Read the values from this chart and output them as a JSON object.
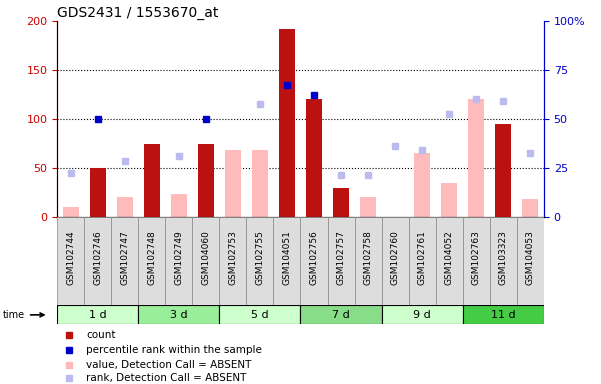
{
  "title": "GDS2431 / 1553670_at",
  "samples": [
    "GSM102744",
    "GSM102746",
    "GSM102747",
    "GSM102748",
    "GSM102749",
    "GSM104060",
    "GSM102753",
    "GSM102755",
    "GSM104051",
    "GSM102756",
    "GSM102757",
    "GSM102758",
    "GSM102760",
    "GSM102761",
    "GSM104052",
    "GSM102763",
    "GSM103323",
    "GSM104053"
  ],
  "time_groups": [
    {
      "label": "1 d",
      "start": 0,
      "end": 3,
      "color": "#ccffcc"
    },
    {
      "label": "3 d",
      "start": 3,
      "end": 6,
      "color": "#99ee99"
    },
    {
      "label": "5 d",
      "start": 6,
      "end": 9,
      "color": "#ccffcc"
    },
    {
      "label": "7 d",
      "start": 9,
      "end": 12,
      "color": "#88dd88"
    },
    {
      "label": "9 d",
      "start": 12,
      "end": 15,
      "color": "#ccffcc"
    },
    {
      "label": "11 d",
      "start": 15,
      "end": 18,
      "color": "#44cc44"
    }
  ],
  "count": [
    null,
    50,
    null,
    75,
    null,
    75,
    null,
    null,
    192,
    120,
    30,
    null,
    null,
    null,
    null,
    null,
    95,
    null
  ],
  "percentile_rank": [
    null,
    100,
    null,
    null,
    null,
    100,
    null,
    null,
    135,
    125,
    null,
    null,
    null,
    null,
    null,
    null,
    null,
    null
  ],
  "value_absent": [
    10,
    null,
    20,
    null,
    23,
    null,
    68,
    68,
    null,
    null,
    25,
    20,
    null,
    65,
    35,
    120,
    null,
    18
  ],
  "rank_absent": [
    45,
    null,
    57,
    null,
    62,
    null,
    null,
    115,
    null,
    null,
    43,
    43,
    72,
    68,
    105,
    120,
    118,
    65
  ],
  "ylim_left": [
    0,
    200
  ],
  "ylim_right": [
    0,
    100
  ],
  "yticks_left": [
    0,
    50,
    100,
    150,
    200
  ],
  "yticks_right": [
    0,
    25,
    50,
    75,
    100
  ],
  "ylabel_left_color": "#cc0000",
  "ylabel_right_color": "#0000cc",
  "grid_values": [
    50,
    100,
    150
  ],
  "bar_width": 0.6,
  "count_color": "#bb1111",
  "percentile_color": "#0000cc",
  "value_absent_color": "#ffbbbb",
  "rank_absent_color": "#bbbbee",
  "legend_entries": [
    "count",
    "percentile rank within the sample",
    "value, Detection Call = ABSENT",
    "rank, Detection Call = ABSENT"
  ],
  "legend_colors": [
    "#bb1111",
    "#0000cc",
    "#ffbbbb",
    "#bbbbee"
  ],
  "background_color": "#ffffff",
  "tick_label_fontsize": 6.5,
  "title_fontsize": 10
}
